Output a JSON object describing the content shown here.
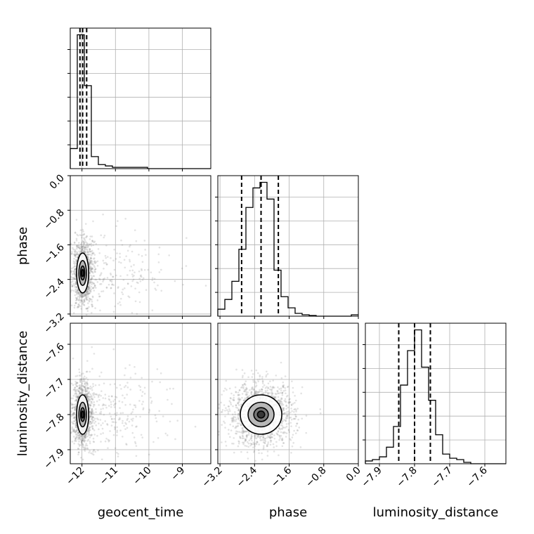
{
  "chart_data": {
    "type": "corner",
    "parameters": [
      "geocent_time",
      "phase",
      "luminosity_distance"
    ],
    "grid": true,
    "axes": {
      "geocent_time": {
        "lim": [
          -12.35,
          -8.15
        ],
        "ticks": [
          -12,
          -11,
          -10,
          -9
        ],
        "tick_labels": [
          "−12",
          "−11",
          "−10",
          "−9"
        ]
      },
      "phase": {
        "lim": [
          -3.25,
          0.0
        ],
        "ticks": [
          -3.2,
          -2.4,
          -1.6,
          -0.8,
          0.0
        ],
        "tick_labels": [
          "−3.2",
          "−2.4",
          "−1.6",
          "−0.8",
          "0.0"
        ]
      },
      "luminosity_distance": {
        "lim": [
          -7.94,
          -7.54
        ],
        "ticks": [
          -7.9,
          -7.8,
          -7.7,
          -7.6
        ],
        "tick_labels": [
          "−7.9",
          "−7.8",
          "−7.7",
          "−7.6"
        ]
      }
    },
    "histograms": {
      "geocent_time": {
        "bin_edges": [
          -12.35,
          -12.14,
          -11.93,
          -11.72,
          -11.51,
          -11.3,
          -11.09,
          -10.88,
          -10.67,
          -10.46,
          -10.25,
          -10.04,
          -9.83,
          -9.62,
          -9.41,
          -9.2,
          -8.99,
          -8.78,
          -8.57,
          -8.36,
          -8.15
        ],
        "counts": [
          0.15,
          1.0,
          0.62,
          0.09,
          0.03,
          0.02,
          0.01,
          0.01,
          0.01,
          0.01,
          0.01,
          0.0,
          0.0,
          0.0,
          0.0,
          0.0,
          0.0,
          0.0,
          0.0,
          0.0
        ],
        "quantiles": [
          -12.06,
          -11.98,
          -11.86
        ]
      },
      "phase": {
        "bin_edges": [
          -3.25,
          -3.0875,
          -2.925,
          -2.7625,
          -2.6,
          -2.4375,
          -2.275,
          -2.1125,
          -1.95,
          -1.7875,
          -1.625,
          -1.4625,
          -1.3,
          -1.1375,
          -0.975,
          -0.8125,
          -0.65,
          -0.4875,
          -0.325,
          -0.1625,
          0.0
        ],
        "counts": [
          0.05,
          0.12,
          0.25,
          0.48,
          0.78,
          0.92,
          0.96,
          0.84,
          0.33,
          0.14,
          0.06,
          0.02,
          0.01,
          0.005,
          0.0,
          0.0,
          0.0,
          0.0,
          0.0,
          0.01
        ],
        "quantiles": [
          -2.7,
          -2.25,
          -1.85
        ]
      },
      "luminosity_distance": {
        "bin_edges": [
          -7.94,
          -7.92,
          -7.9,
          -7.88,
          -7.86,
          -7.84,
          -7.82,
          -7.8,
          -7.78,
          -7.76,
          -7.74,
          -7.72,
          -7.7,
          -7.68,
          -7.66,
          -7.64,
          -7.62,
          -7.6,
          -7.58,
          -7.56,
          -7.54
        ],
        "counts": [
          0.02,
          0.03,
          0.05,
          0.12,
          0.27,
          0.57,
          0.82,
          0.97,
          0.7,
          0.46,
          0.21,
          0.07,
          0.04,
          0.03,
          0.01,
          0.0,
          0.0,
          0.0,
          0.0,
          0.0
        ],
        "quantiles": [
          -7.845,
          -7.8,
          -7.755
        ]
      }
    },
    "contours_2d": [
      {
        "x": "geocent_time",
        "y": "phase",
        "center": [
          -11.98,
          -2.25
        ],
        "sigma": [
          0.09,
          0.23
        ],
        "levels": [
          0.35,
          0.7,
          1.25,
          2.0
        ],
        "shades": [
          "#303030",
          "#707070",
          "#b0b0b0",
          "#ffffff"
        ]
      },
      {
        "x": "geocent_time",
        "y": "luminosity_distance",
        "center": [
          -11.98,
          -7.8
        ],
        "sigma": [
          0.09,
          0.028
        ],
        "levels": [
          0.35,
          0.7,
          1.25,
          2.0
        ],
        "shades": [
          "#303030",
          "#707070",
          "#b0b0b0",
          "#ffffff"
        ]
      },
      {
        "x": "phase",
        "y": "luminosity_distance",
        "center": [
          -2.25,
          -7.8
        ],
        "sigma": [
          0.24,
          0.028
        ],
        "levels": [
          0.35,
          0.7,
          1.25,
          2.0
        ],
        "shades": [
          "#303030",
          "#707070",
          "#b0b0b0",
          "#ffffff"
        ]
      }
    ],
    "xlabels": [
      "geocent_time",
      "phase",
      "luminosity_distance"
    ],
    "ylabels": [
      "",
      "phase",
      "luminosity_distance"
    ],
    "colors": {
      "line": "#000000",
      "grid": "#b0b0b0",
      "points": "#7f7f7f"
    }
  }
}
